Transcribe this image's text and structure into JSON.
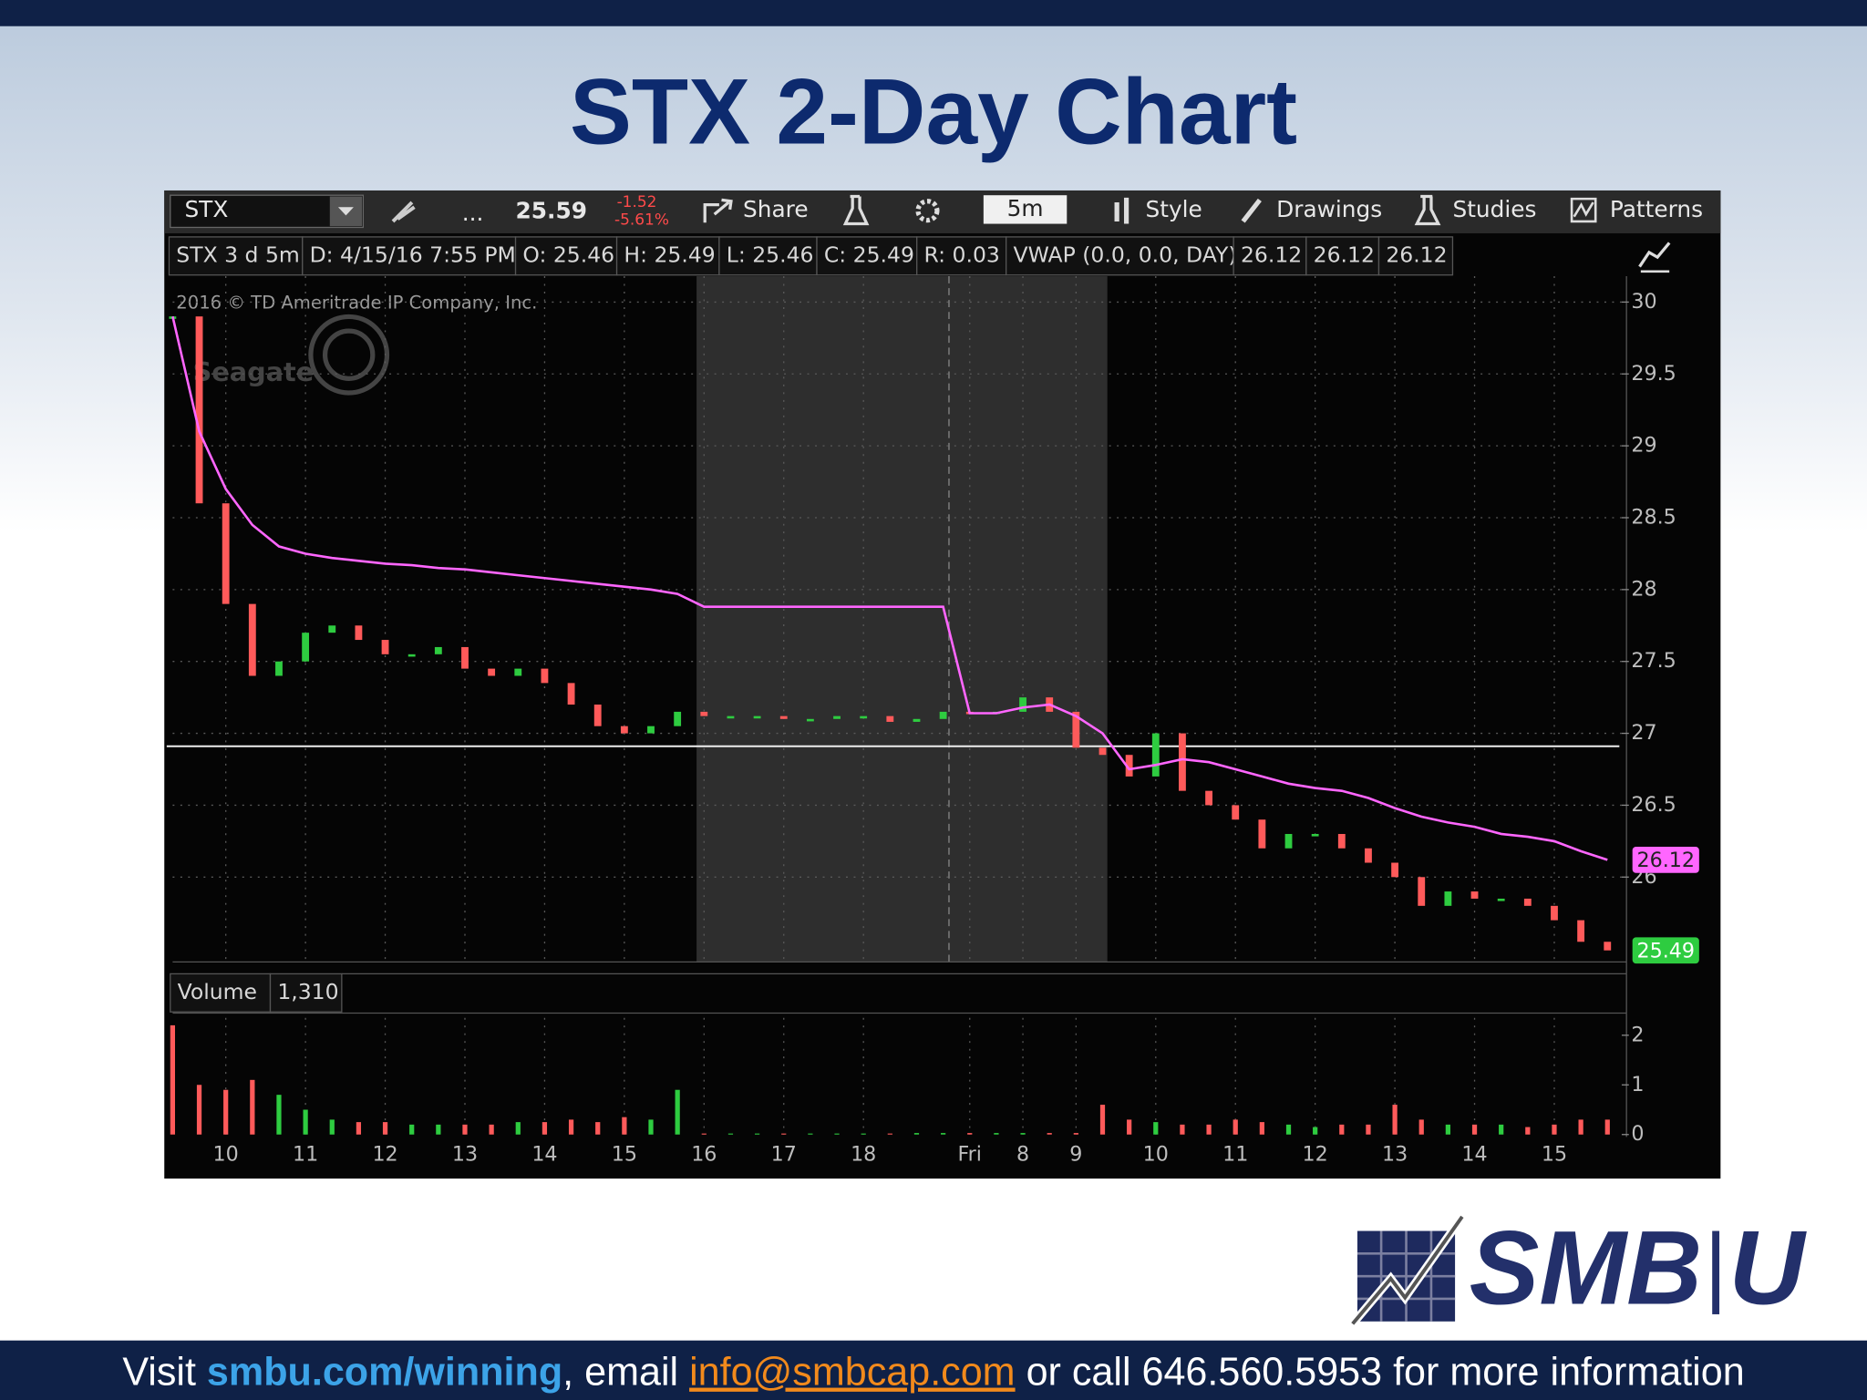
{
  "header": {
    "title": "STX 2-Day Chart"
  },
  "toolbar": {
    "ellipsis": "...",
    "last": "25.59",
    "change": "-1.52",
    "change_pct": "-5.61%",
    "share": "Share",
    "interval": "5m",
    "style": "Style",
    "drawings": "Drawings",
    "studies": "Studies",
    "patterns": "Patterns"
  },
  "status_bar": [
    "STX 3 d 5m",
    "D: 4/15/16 7:55 PM",
    "O: 25.46",
    "H: 25.49",
    "L: 25.46",
    "C: 25.49",
    "R: 0.03"
  ],
  "study_values": [
    "26.12",
    "26.12",
    "26.12"
  ],
  "watermark": {
    "copyright": "2016 © TD Ameritrade IP Company, Inc.",
    "brand": "Seagate"
  },
  "chart_data": [
    {
      "type": "line",
      "categories": [
        null,
        null,
        "10",
        null,
        null,
        "11",
        null,
        null,
        "12",
        null,
        null,
        "13",
        null,
        null,
        "14",
        null,
        null,
        "15",
        null,
        null,
        "16",
        null,
        null,
        "17",
        null,
        null,
        "18",
        null,
        null,
        null,
        "Fri",
        null,
        "8",
        null,
        "9",
        null,
        null,
        "10",
        null,
        null,
        "11",
        null,
        null,
        "12",
        null,
        null,
        "13",
        null,
        null,
        "14",
        null,
        null,
        "15",
        null,
        null
      ],
      "series": [
        {
          "name": "STX",
          "color": "#2ecc40",
          "up_color": "#2ecc40",
          "down_color": "#ff5a5a",
          "values": [
            29.9,
            28.6,
            27.9,
            27.4,
            27.5,
            27.7,
            27.75,
            27.65,
            27.55,
            27.55,
            27.6,
            27.45,
            27.4,
            27.45,
            27.35,
            27.2,
            27.05,
            27.0,
            27.05,
            27.15,
            27.12,
            27.12,
            27.12,
            27.1,
            27.1,
            27.12,
            27.12,
            27.08,
            27.1,
            27.15,
            27.14,
            27.15,
            27.25,
            27.15,
            26.9,
            26.85,
            26.7,
            27.0,
            26.6,
            26.5,
            26.4,
            26.2,
            26.3,
            26.3,
            26.2,
            26.1,
            26.0,
            25.8,
            25.9,
            25.85,
            25.85,
            25.8,
            25.7,
            25.55,
            25.49
          ]
        },
        {
          "name": "VWAP (0.0, 0.0, DAY)",
          "color": "#ff66ff",
          "values": [
            29.9,
            29.1,
            28.7,
            28.45,
            28.3,
            28.25,
            28.22,
            28.2,
            28.18,
            28.17,
            28.15,
            28.14,
            28.12,
            28.1,
            28.08,
            28.06,
            28.04,
            28.02,
            28.0,
            27.97,
            27.88,
            27.88,
            27.88,
            27.88,
            27.88,
            27.88,
            27.88,
            27.88,
            27.88,
            27.88,
            27.14,
            27.14,
            27.18,
            27.2,
            27.12,
            27.0,
            26.75,
            26.78,
            26.82,
            26.8,
            26.75,
            26.7,
            26.65,
            26.62,
            26.6,
            26.55,
            26.48,
            26.42,
            26.38,
            26.35,
            26.3,
            26.28,
            26.25,
            26.18,
            26.12
          ]
        }
      ],
      "hline": 26.91,
      "ylim": [
        25.41,
        30.18
      ],
      "yticks": [
        26,
        26.5,
        27,
        27.5,
        28,
        28.5,
        29,
        29.5,
        30
      ],
      "grid": true
    },
    {
      "type": "bar",
      "title": "Volume",
      "readout": "1,310",
      "color": "#ff5a5a",
      "values": [
        2.2,
        1.0,
        0.9,
        1.1,
        0.8,
        0.5,
        0.3,
        0.25,
        0.25,
        0.2,
        0.2,
        0.2,
        0.2,
        0.25,
        0.25,
        0.3,
        0.25,
        0.35,
        0.3,
        0.9,
        0.02,
        0.02,
        0.02,
        0.02,
        0.02,
        0.02,
        0.02,
        0.02,
        0.03,
        0.03,
        0.03,
        0.03,
        0.03,
        0.03,
        0.03,
        0.6,
        0.3,
        0.25,
        0.2,
        0.2,
        0.3,
        0.25,
        0.2,
        0.15,
        0.2,
        0.2,
        0.6,
        0.3,
        0.2,
        0.2,
        0.2,
        0.15,
        0.2,
        0.3,
        0.3
      ],
      "ylim": [
        0,
        2.35
      ],
      "yticks": [
        0,
        1,
        2
      ],
      "grid": true
    }
  ],
  "logo": {
    "left": "SMB",
    "right": "U"
  },
  "footer": {
    "visit": "Visit ",
    "url": "smbu.com/winning",
    "email_prefix": ", email ",
    "email": "info@smbcap.com",
    "rest": " or call 646.560.5953 for more information"
  }
}
